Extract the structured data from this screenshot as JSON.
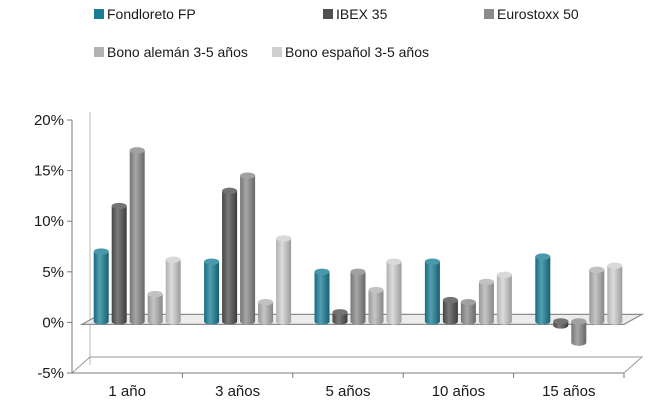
{
  "chart_data": {
    "type": "bar",
    "categories": [
      "1 año",
      "3 años",
      "5 años",
      "10 años",
      "15 años"
    ],
    "series": [
      {
        "name": "Fondloreto FP",
        "color": "#1a7f96",
        "values": [
          7.0,
          6.0,
          5.0,
          6.0,
          6.5
        ]
      },
      {
        "name": "IBEX 35",
        "color": "#505050",
        "values": [
          11.5,
          13.0,
          1.0,
          2.2,
          -0.3
        ]
      },
      {
        "name": "Eurostoxx 50",
        "color": "#8a8a8a",
        "values": [
          17.0,
          14.5,
          5.0,
          2.0,
          -2.0
        ]
      },
      {
        "name": "Bono alemán 3-5 años",
        "color": "#b3b3b3",
        "values": [
          2.8,
          2.0,
          3.2,
          4.0,
          5.2
        ]
      },
      {
        "name": "Bono español 3-5 años",
        "color": "#d0d0d0",
        "values": [
          6.2,
          8.3,
          6.0,
          4.7,
          5.6
        ]
      }
    ],
    "y_ticks": [
      "-5%",
      "0%",
      "5%",
      "10%",
      "15%",
      "20%"
    ],
    "y_tick_values": [
      -5,
      0,
      5,
      10,
      15,
      20
    ],
    "ylim": [
      -5,
      20
    ],
    "legend_position": "top",
    "grid": false
  }
}
